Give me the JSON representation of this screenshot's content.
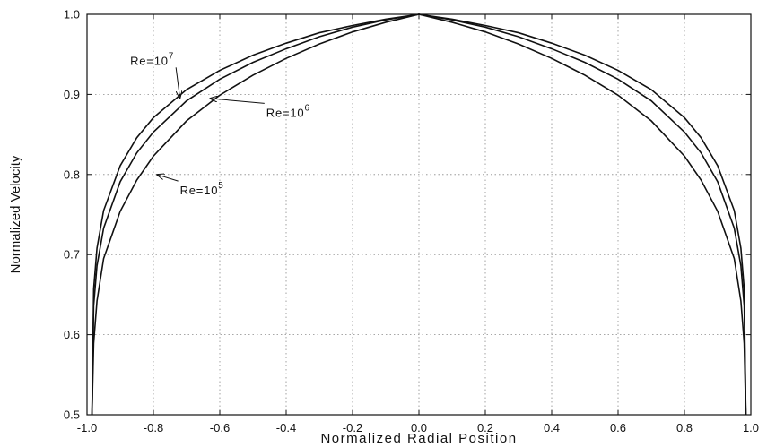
{
  "chart_data": {
    "type": "line",
    "title": "",
    "xlabel": "Normalized Radial Position",
    "ylabel": "Normalized Velocity",
    "xlim": [
      -1.0,
      1.0
    ],
    "ylim": [
      0.5,
      1.0
    ],
    "grid": true,
    "x_ticks": [
      "-1.0",
      "-0.8",
      "-0.6",
      "-0.4",
      "-0.2",
      "0.0",
      "0.2",
      "0.4",
      "0.6",
      "0.8",
      "1.0"
    ],
    "y_ticks": [
      "0.5",
      "0.6",
      "0.7",
      "0.8",
      "0.9",
      "1.0"
    ],
    "x": [
      -0.985,
      -0.98,
      -0.97,
      -0.95,
      -0.9,
      -0.85,
      -0.8,
      -0.7,
      -0.6,
      -0.5,
      -0.4,
      -0.3,
      -0.2,
      -0.1,
      0.0,
      0.1,
      0.2,
      0.3,
      0.4,
      0.5,
      0.6,
      0.7,
      0.8,
      0.85,
      0.9,
      0.95,
      0.97,
      0.98,
      0.985
    ],
    "series": [
      {
        "label_base": "Re=10",
        "label_exp": "7",
        "values": [
          0.5,
          0.657,
          0.708,
          0.755,
          0.811,
          0.846,
          0.871,
          0.906,
          0.93,
          0.949,
          0.964,
          0.977,
          0.986,
          0.994,
          1.0,
          0.994,
          0.986,
          0.977,
          0.964,
          0.949,
          0.93,
          0.906,
          0.871,
          0.846,
          0.811,
          0.755,
          0.708,
          0.657,
          0.5
        ]
      },
      {
        "label_base": "Re=10",
        "label_exp": "6",
        "values": [
          0.5,
          0.636,
          0.686,
          0.733,
          0.791,
          0.827,
          0.853,
          0.892,
          0.919,
          0.94,
          0.957,
          0.972,
          0.984,
          0.993,
          1.0,
          0.993,
          0.984,
          0.972,
          0.957,
          0.94,
          0.919,
          0.892,
          0.853,
          0.827,
          0.791,
          0.733,
          0.686,
          0.636,
          0.5
        ]
      },
      {
        "label_base": "Re=10",
        "label_exp": "5",
        "values": [
          0.5,
          0.589,
          0.642,
          0.695,
          0.754,
          0.793,
          0.823,
          0.867,
          0.899,
          0.924,
          0.945,
          0.963,
          0.978,
          0.99,
          1.0,
          0.99,
          0.978,
          0.963,
          0.945,
          0.924,
          0.899,
          0.867,
          0.823,
          0.793,
          0.754,
          0.695,
          0.642,
          0.589,
          0.5
        ]
      }
    ],
    "annotations": [
      {
        "series": 0,
        "text_x": -0.87,
        "text_y": 0.937,
        "point_x": -0.72,
        "point_y": 0.895
      },
      {
        "series": 1,
        "text_x": -0.46,
        "text_y": 0.872,
        "point_x": -0.63,
        "point_y": 0.895
      },
      {
        "series": 2,
        "text_x": -0.72,
        "text_y": 0.775,
        "point_x": -0.79,
        "point_y": 0.8
      }
    ]
  }
}
